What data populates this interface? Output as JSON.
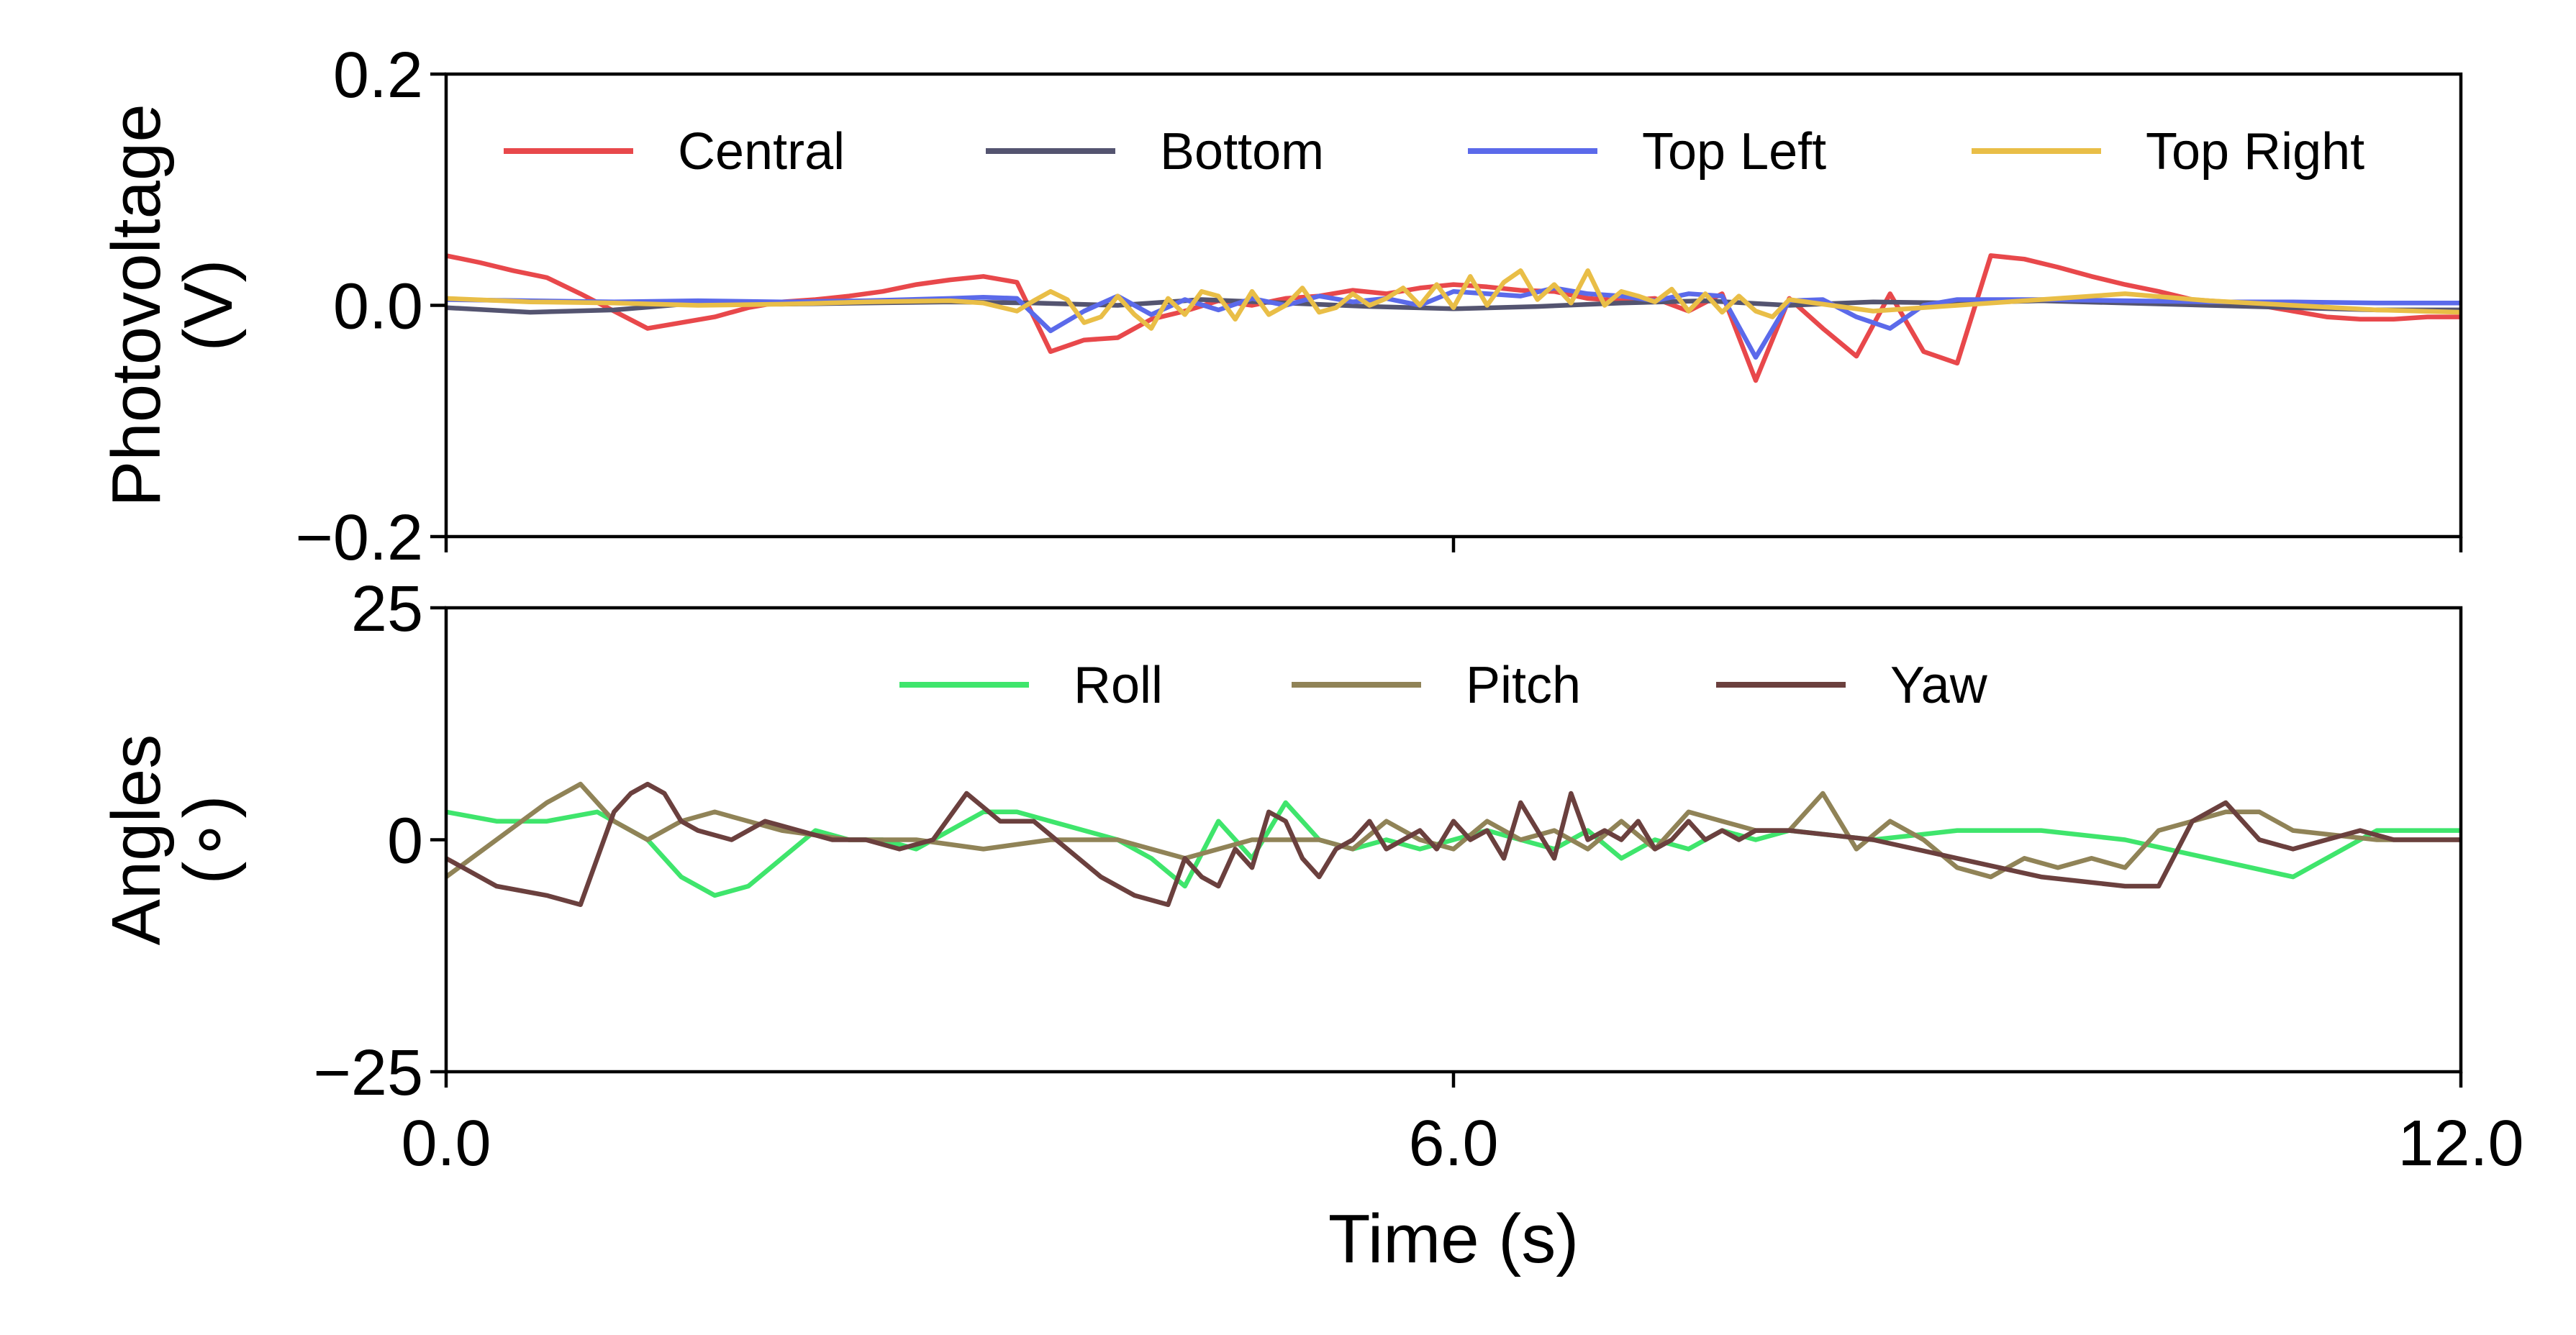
{
  "chart_data": [
    {
      "type": "line",
      "ylabel": "Photovoltage\n(V)",
      "xlim": [
        0,
        12
      ],
      "ylim": [
        -0.2,
        0.2
      ],
      "yticks": [
        "0.2",
        "0.0",
        "−0.2"
      ],
      "ytick_values": [
        0.2,
        0.0,
        -0.2
      ],
      "legend": "top, 4 columns",
      "grid": false,
      "series": [
        {
          "name": "Central",
          "color": "#e8484b",
          "x": [
            0.0,
            0.2,
            0.4,
            0.6,
            0.8,
            1.0,
            1.2,
            1.4,
            1.6,
            1.8,
            2.0,
            2.2,
            2.4,
            2.6,
            2.8,
            3.0,
            3.2,
            3.4,
            3.6,
            3.8,
            4.0,
            4.2,
            4.4,
            4.6,
            4.8,
            5.0,
            5.2,
            5.4,
            5.6,
            5.8,
            6.0,
            6.2,
            6.4,
            6.6,
            6.8,
            7.0,
            7.2,
            7.4,
            7.6,
            7.8,
            8.0,
            8.2,
            8.4,
            8.6,
            8.8,
            9.0,
            9.2,
            9.4,
            9.6,
            9.8,
            10.0,
            10.2,
            10.4,
            10.6,
            10.8,
            11.0,
            11.2,
            11.4,
            11.6,
            11.8,
            12.0
          ],
          "values": [
            0.043,
            0.037,
            0.03,
            0.024,
            0.01,
            -0.005,
            -0.02,
            -0.015,
            -0.01,
            -0.002,
            0.003,
            0.005,
            0.008,
            0.012,
            0.018,
            0.022,
            0.025,
            0.02,
            -0.04,
            -0.03,
            -0.028,
            -0.012,
            -0.005,
            0.004,
            0.0,
            0.006,
            0.008,
            0.013,
            0.01,
            0.015,
            0.018,
            0.016,
            0.013,
            0.012,
            0.006,
            0.004,
            0.006,
            -0.005,
            0.01,
            -0.065,
            0.006,
            -0.02,
            -0.044,
            0.01,
            -0.04,
            -0.05,
            0.043,
            0.04,
            0.033,
            0.025,
            0.018,
            0.012,
            0.005,
            0.003,
            0.0,
            -0.005,
            -0.01,
            -0.012,
            -0.012,
            -0.01,
            -0.01
          ]
        },
        {
          "name": "Bottom",
          "color": "#545470",
          "x": [
            0.0,
            0.5,
            1.0,
            1.5,
            2.0,
            2.5,
            3.0,
            3.5,
            4.0,
            4.5,
            5.0,
            5.5,
            6.0,
            6.5,
            7.0,
            7.5,
            8.0,
            8.5,
            9.0,
            9.5,
            10.0,
            10.5,
            11.0,
            11.5,
            12.0
          ],
          "values": [
            -0.002,
            -0.006,
            -0.004,
            0.002,
            0.001,
            0.002,
            0.003,
            0.002,
            0.0,
            0.005,
            0.002,
            -0.001,
            -0.003,
            -0.001,
            0.002,
            0.004,
            0.0,
            0.003,
            0.002,
            0.004,
            0.002,
            0.0,
            -0.002,
            -0.004,
            -0.004
          ]
        },
        {
          "name": "Top Left",
          "color": "#5b6aea",
          "x": [
            0.0,
            0.5,
            1.0,
            1.5,
            2.0,
            2.5,
            3.0,
            3.2,
            3.4,
            3.6,
            3.8,
            4.0,
            4.2,
            4.4,
            4.6,
            4.8,
            5.0,
            5.2,
            5.4,
            5.6,
            5.8,
            6.0,
            6.2,
            6.4,
            6.6,
            6.8,
            7.0,
            7.2,
            7.4,
            7.6,
            7.8,
            8.0,
            8.2,
            8.4,
            8.6,
            8.8,
            9.0,
            9.5,
            10.0,
            10.5,
            11.0,
            11.5,
            12.0
          ],
          "values": [
            0.005,
            0.004,
            0.003,
            0.004,
            0.003,
            0.004,
            0.006,
            0.007,
            0.006,
            -0.022,
            -0.005,
            0.008,
            -0.008,
            0.005,
            -0.004,
            0.006,
            0.0,
            0.008,
            0.003,
            0.006,
            0.0,
            0.012,
            0.01,
            0.008,
            0.015,
            0.01,
            0.008,
            0.004,
            0.01,
            0.008,
            -0.045,
            0.004,
            0.005,
            -0.01,
            -0.02,
            0.0,
            0.005,
            0.005,
            0.004,
            0.003,
            0.003,
            0.002,
            0.002
          ]
        },
        {
          "name": "Top Right",
          "color": "#e9be47",
          "x": [
            0.0,
            0.5,
            1.0,
            1.5,
            2.0,
            2.5,
            3.0,
            3.2,
            3.4,
            3.5,
            3.6,
            3.7,
            3.8,
            3.9,
            4.0,
            4.1,
            4.2,
            4.3,
            4.4,
            4.5,
            4.6,
            4.7,
            4.8,
            4.9,
            5.0,
            5.1,
            5.2,
            5.3,
            5.4,
            5.5,
            5.6,
            5.7,
            5.8,
            5.9,
            6.0,
            6.1,
            6.2,
            6.3,
            6.4,
            6.5,
            6.6,
            6.7,
            6.8,
            6.9,
            7.0,
            7.1,
            7.2,
            7.3,
            7.4,
            7.5,
            7.6,
            7.7,
            7.8,
            7.9,
            8.0,
            8.5,
            9.0,
            9.5,
            10.0,
            10.5,
            11.0,
            11.5,
            12.0
          ],
          "values": [
            0.006,
            0.003,
            0.002,
            0.0,
            0.001,
            0.003,
            0.004,
            0.002,
            -0.005,
            0.004,
            0.012,
            0.005,
            -0.015,
            -0.01,
            0.008,
            -0.008,
            -0.02,
            0.006,
            -0.008,
            0.012,
            0.008,
            -0.012,
            0.012,
            -0.008,
            0.0,
            0.015,
            -0.006,
            -0.002,
            0.01,
            0.0,
            0.006,
            0.015,
            0.0,
            0.018,
            -0.002,
            0.025,
            0.0,
            0.02,
            0.03,
            0.005,
            0.018,
            0.002,
            0.03,
            0.0,
            0.012,
            0.008,
            0.003,
            0.014,
            -0.005,
            0.01,
            -0.006,
            0.008,
            -0.005,
            -0.01,
            0.005,
            -0.005,
            0.0,
            0.005,
            0.01,
            0.004,
            0.0,
            -0.004,
            -0.006
          ]
        }
      ]
    },
    {
      "type": "line",
      "title": "",
      "xlabel": "Time (s)",
      "ylabel": "Angles\n(∘)",
      "xlim": [
        0,
        12
      ],
      "ylim": [
        -25,
        25
      ],
      "xticks": [
        "0.0",
        "6.0",
        "12.0"
      ],
      "xtick_values": [
        0,
        6,
        12
      ],
      "yticks": [
        "25",
        "0",
        "−25"
      ],
      "ytick_values": [
        25,
        0,
        -25
      ],
      "legend": "top, 3 columns",
      "grid": false,
      "series": [
        {
          "name": "Roll",
          "color": "#3fe56c",
          "x": [
            0.0,
            0.3,
            0.6,
            0.9,
            1.0,
            1.2,
            1.4,
            1.6,
            1.8,
            2.0,
            2.2,
            2.4,
            2.6,
            2.8,
            3.0,
            3.2,
            3.4,
            3.6,
            3.8,
            4.0,
            4.2,
            4.4,
            4.6,
            4.8,
            5.0,
            5.2,
            5.4,
            5.6,
            5.8,
            6.0,
            6.2,
            6.4,
            6.6,
            6.8,
            7.0,
            7.2,
            7.4,
            7.6,
            7.8,
            8.0,
            8.5,
            9.0,
            9.5,
            10.0,
            10.5,
            11.0,
            11.5,
            12.0
          ],
          "values": [
            3,
            2,
            2,
            3,
            2,
            0,
            -4,
            -6,
            -5,
            -2,
            1,
            0,
            0,
            -1,
            1,
            3,
            3,
            2,
            1,
            0,
            -2,
            -5,
            2,
            -2,
            4,
            0,
            -1,
            0,
            -1,
            0,
            1,
            0,
            -1,
            1,
            -2,
            0,
            -1,
            1,
            0,
            1,
            0,
            1,
            1,
            0,
            -2,
            -4,
            1,
            1
          ]
        },
        {
          "name": "Pitch",
          "color": "#908357",
          "x": [
            0.0,
            0.3,
            0.6,
            0.8,
            1.0,
            1.2,
            1.4,
            1.6,
            1.8,
            2.0,
            2.4,
            2.8,
            3.2,
            3.6,
            4.0,
            4.4,
            4.8,
            5.2,
            5.4,
            5.6,
            5.8,
            6.0,
            6.2,
            6.4,
            6.6,
            6.8,
            7.0,
            7.2,
            7.4,
            7.6,
            7.8,
            8.0,
            8.2,
            8.4,
            8.6,
            8.8,
            9.0,
            9.2,
            9.4,
            9.6,
            9.8,
            10.0,
            10.2,
            10.4,
            10.6,
            10.8,
            11.0,
            11.5,
            12.0
          ],
          "values": [
            -4,
            0,
            4,
            6,
            2,
            0,
            2,
            3,
            2,
            1,
            0,
            0,
            -1,
            0,
            0,
            -2,
            0,
            0,
            -1,
            2,
            0,
            -1,
            2,
            0,
            1,
            -1,
            2,
            -1,
            3,
            2,
            1,
            1,
            5,
            -1,
            2,
            0,
            -3,
            -4,
            -2,
            -3,
            -2,
            -3,
            1,
            2,
            3,
            3,
            1,
            0,
            0
          ]
        },
        {
          "name": "Yaw",
          "color": "#6b403e",
          "x": [
            0.0,
            0.3,
            0.6,
            0.8,
            0.9,
            1.0,
            1.1,
            1.2,
            1.3,
            1.4,
            1.5,
            1.7,
            1.9,
            2.1,
            2.3,
            2.5,
            2.7,
            2.9,
            3.1,
            3.3,
            3.5,
            3.7,
            3.9,
            4.1,
            4.3,
            4.4,
            4.5,
            4.6,
            4.7,
            4.8,
            4.9,
            5.0,
            5.1,
            5.2,
            5.3,
            5.4,
            5.5,
            5.6,
            5.7,
            5.8,
            5.9,
            6.0,
            6.1,
            6.2,
            6.3,
            6.4,
            6.5,
            6.6,
            6.7,
            6.8,
            6.9,
            7.0,
            7.1,
            7.2,
            7.3,
            7.4,
            7.5,
            7.6,
            7.7,
            7.8,
            8.0,
            8.5,
            9.0,
            9.5,
            10.0,
            10.2,
            10.4,
            10.6,
            10.8,
            11.0,
            11.2,
            11.4,
            11.6,
            11.8,
            12.0
          ],
          "values": [
            -2,
            -5,
            -6,
            -7,
            -2,
            3,
            5,
            6,
            5,
            2,
            1,
            0,
            2,
            1,
            0,
            0,
            -1,
            0,
            5,
            2,
            2,
            -1,
            -4,
            -6,
            -7,
            -2,
            -4,
            -5,
            -1,
            -3,
            3,
            2,
            -2,
            -4,
            -1,
            0,
            2,
            -1,
            0,
            1,
            -1,
            2,
            0,
            1,
            -2,
            4,
            1,
            -2,
            5,
            0,
            1,
            0,
            2,
            -1,
            0,
            2,
            0,
            1,
            0,
            1,
            1,
            0,
            -2,
            -4,
            -5,
            -5,
            2,
            4,
            0,
            -1,
            0,
            1,
            0,
            0,
            0
          ]
        }
      ]
    }
  ]
}
